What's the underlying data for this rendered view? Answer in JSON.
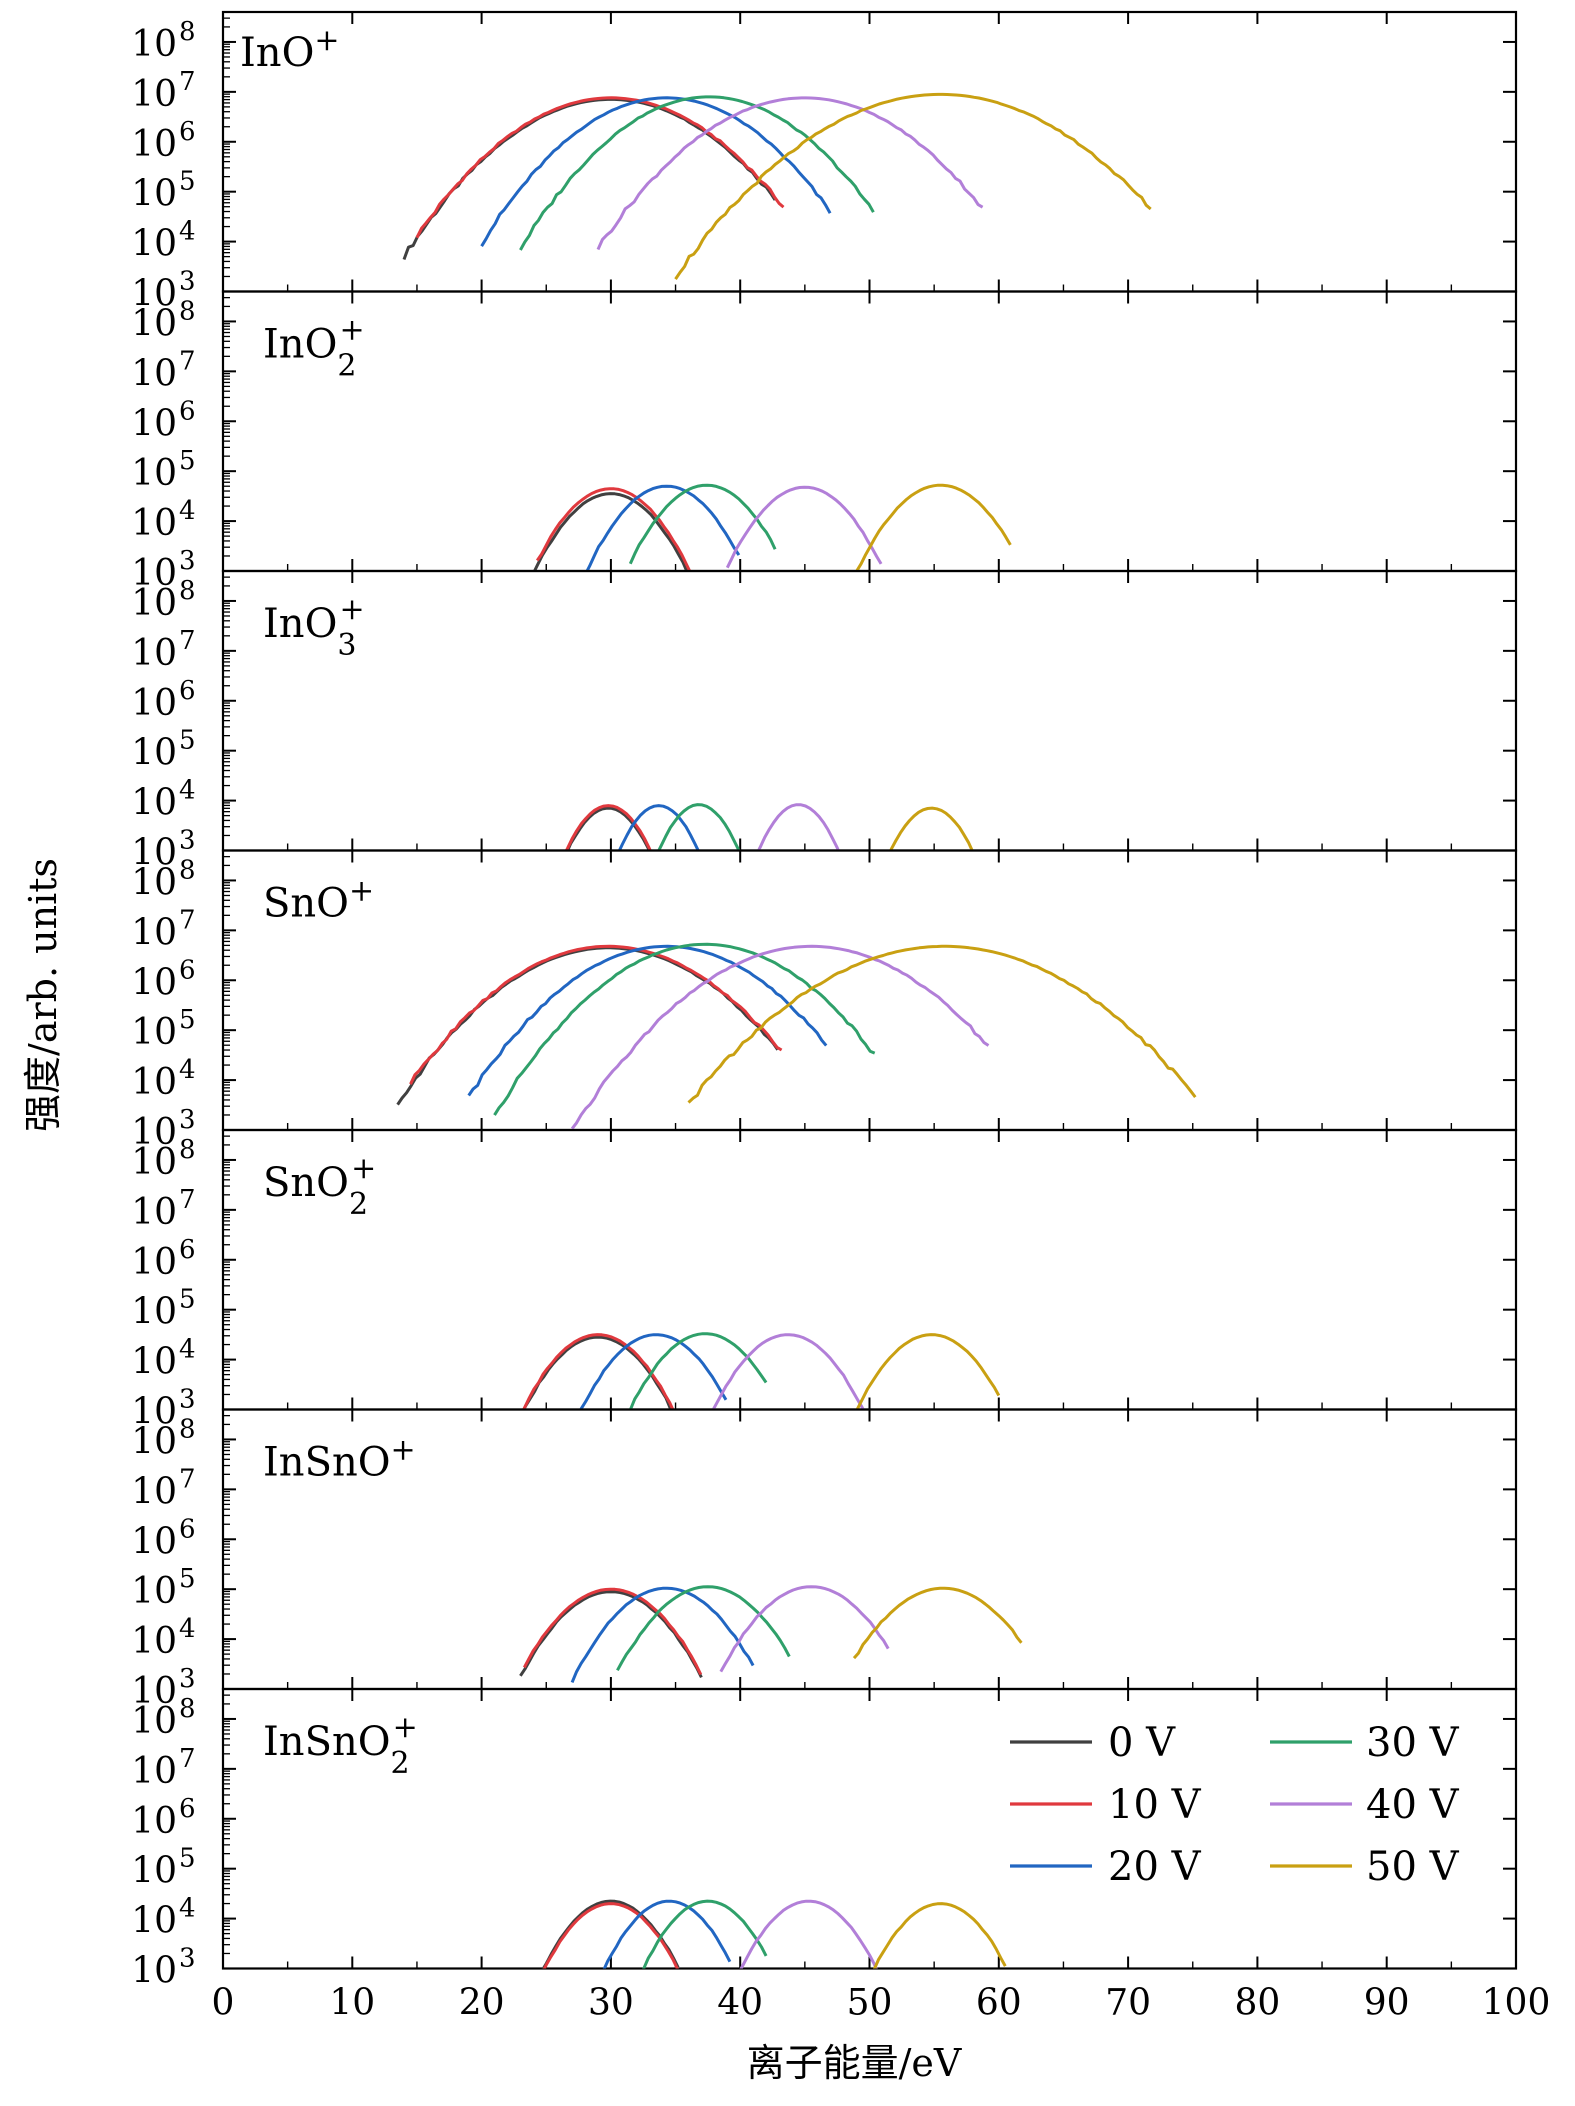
{
  "chart_data": {
    "type": "line",
    "xlabel": "离子能量/eV",
    "ylabel": "强度/arb. units",
    "x_axis": {
      "range": [
        0,
        100
      ],
      "ticks": [
        0,
        10,
        20,
        30,
        40,
        50,
        60,
        70,
        80,
        90,
        100
      ]
    },
    "y_axis": {
      "scale": "log",
      "range_exponent": [
        3,
        8.6
      ],
      "ticks": [
        {
          "base": "10",
          "exp": "3"
        },
        {
          "base": "10",
          "exp": "4"
        },
        {
          "base": "10",
          "exp": "5"
        },
        {
          "base": "10",
          "exp": "6"
        },
        {
          "base": "10",
          "exp": "7"
        },
        {
          "base": "10",
          "exp": "8"
        }
      ]
    },
    "series_styles": [
      {
        "name": "0 V",
        "color": "#404040"
      },
      {
        "name": "10 V",
        "color": "#e0393e"
      },
      {
        "name": "20 V",
        "color": "#2166c2"
      },
      {
        "name": "30 V",
        "color": "#2fa06a"
      },
      {
        "name": "40 V",
        "color": "#b27fd8"
      },
      {
        "name": "50 V",
        "color": "#c9a012"
      }
    ],
    "legend": {
      "placement": "bottom-panel-right",
      "columns": 2
    },
    "panels": [
      {
        "label": {
          "base": "InO",
          "sup": "+",
          "sub": ""
        },
        "series": [
          {
            "name": "0 V",
            "peak_energy": 30.0,
            "peak_log": 6.85,
            "width": 4.2,
            "range": [
              14,
              43
            ]
          },
          {
            "name": "10 V",
            "peak_energy": 30.0,
            "peak_log": 6.88,
            "width": 4.2,
            "range": [
              15,
              43.5
            ]
          },
          {
            "name": "20 V",
            "peak_energy": 34.3,
            "peak_log": 6.88,
            "width": 3.9,
            "range": [
              20,
              47
            ]
          },
          {
            "name": "30 V",
            "peak_energy": 37.6,
            "peak_log": 6.9,
            "width": 3.9,
            "range": [
              23,
              50.5
            ]
          },
          {
            "name": "40 V",
            "peak_energy": 45.0,
            "peak_log": 6.88,
            "width": 4.3,
            "range": [
              29,
              59
            ]
          },
          {
            "name": "50 V",
            "peak_energy": 55.5,
            "peak_log": 6.95,
            "width": 5.0,
            "range": [
              35,
              72
            ]
          }
        ]
      },
      {
        "label": {
          "base": "InO",
          "sup": "+",
          "sub": "2"
        },
        "series": [
          {
            "name": "0 V",
            "peak_energy": 30.0,
            "peak_log": 4.55,
            "width": 2.2,
            "range": [
              24,
              36
            ]
          },
          {
            "name": "10 V",
            "peak_energy": 30.0,
            "peak_log": 4.65,
            "width": 2.2,
            "range": [
              24.3,
              36.5
            ]
          },
          {
            "name": "20 V",
            "peak_energy": 34.3,
            "peak_log": 4.7,
            "width": 2.2,
            "range": [
              28,
              40
            ]
          },
          {
            "name": "30 V",
            "peak_energy": 37.4,
            "peak_log": 4.72,
            "width": 2.2,
            "range": [
              31.5,
              43
            ]
          },
          {
            "name": "40 V",
            "peak_energy": 45.0,
            "peak_log": 4.68,
            "width": 2.2,
            "range": [
              39,
              51
            ]
          },
          {
            "name": "50 V",
            "peak_energy": 55.5,
            "peak_log": 4.72,
            "width": 2.3,
            "range": [
              49,
              61
            ]
          }
        ]
      },
      {
        "label": {
          "base": "InO",
          "sup": "+",
          "sub": "3"
        },
        "series": [
          {
            "name": "0 V",
            "peak_energy": 29.8,
            "peak_log": 3.85,
            "width": 1.6,
            "range": [
              25.5,
              33.5
            ]
          },
          {
            "name": "10 V",
            "peak_energy": 29.8,
            "peak_log": 3.9,
            "width": 1.6,
            "range": [
              25.6,
              34
            ]
          },
          {
            "name": "20 V",
            "peak_energy": 33.7,
            "peak_log": 3.9,
            "width": 1.5,
            "range": [
              29.5,
              37.5
            ]
          },
          {
            "name": "30 V",
            "peak_energy": 36.8,
            "peak_log": 3.92,
            "width": 1.5,
            "range": [
              32.5,
              40.5
            ]
          },
          {
            "name": "40 V",
            "peak_energy": 44.5,
            "peak_log": 3.92,
            "width": 1.5,
            "range": [
              40.5,
              48.5
            ]
          },
          {
            "name": "50 V",
            "peak_energy": 54.8,
            "peak_log": 3.85,
            "width": 1.6,
            "range": [
              51,
              58.5
            ]
          }
        ]
      },
      {
        "label": {
          "base": "SnO",
          "sup": "+",
          "sub": ""
        },
        "series": [
          {
            "name": "0 V",
            "peak_energy": 29.8,
            "peak_log": 6.65,
            "width": 4.3,
            "range": [
              13.5,
              43
            ]
          },
          {
            "name": "10 V",
            "peak_energy": 29.8,
            "peak_log": 6.68,
            "width": 4.3,
            "range": [
              14.5,
              43.5
            ]
          },
          {
            "name": "20 V",
            "peak_energy": 34.3,
            "peak_log": 6.68,
            "width": 4.1,
            "range": [
              19,
              46.8
            ]
          },
          {
            "name": "30 V",
            "peak_energy": 37.3,
            "peak_log": 6.72,
            "width": 4.1,
            "range": [
              21,
              50.5
            ]
          },
          {
            "name": "40 V",
            "peak_energy": 45.5,
            "peak_log": 6.68,
            "width": 4.5,
            "range": [
              27,
              59.5
            ]
          },
          {
            "name": "50 V",
            "peak_energy": 55.8,
            "peak_log": 6.68,
            "width": 5.2,
            "range": [
              36,
              75.5
            ]
          }
        ]
      },
      {
        "label": {
          "base": "SnO",
          "sup": "+",
          "sub": "2"
        },
        "series": [
          {
            "name": "0 V",
            "peak_energy": 29.0,
            "peak_log": 4.45,
            "width": 2.2,
            "range": [
              22.7,
              35
            ]
          },
          {
            "name": "10 V",
            "peak_energy": 29.0,
            "peak_log": 4.5,
            "width": 2.2,
            "range": [
              23,
              35.5
            ]
          },
          {
            "name": "20 V",
            "peak_energy": 33.5,
            "peak_log": 4.5,
            "width": 2.2,
            "range": [
              27,
              39
            ]
          },
          {
            "name": "30 V",
            "peak_energy": 37.3,
            "peak_log": 4.52,
            "width": 2.2,
            "range": [
              30.8,
              42
            ]
          },
          {
            "name": "40 V",
            "peak_energy": 43.7,
            "peak_log": 4.5,
            "width": 2.2,
            "range": [
              37.5,
              50
            ]
          },
          {
            "name": "50 V",
            "peak_energy": 54.8,
            "peak_log": 4.5,
            "width": 2.2,
            "range": [
              48.8,
              60
            ]
          }
        ]
      },
      {
        "label": {
          "base": "InSnO",
          "sup": "+",
          "sub": ""
        },
        "series": [
          {
            "name": "0 V",
            "peak_energy": 30.0,
            "peak_log": 4.95,
            "width": 2.5,
            "range": [
              23,
              37
            ]
          },
          {
            "name": "10 V",
            "peak_energy": 30.0,
            "peak_log": 5.0,
            "width": 2.5,
            "range": [
              23.3,
              37
            ]
          },
          {
            "name": "20 V",
            "peak_energy": 34.3,
            "peak_log": 5.02,
            "width": 2.5,
            "range": [
              27,
              41
            ]
          },
          {
            "name": "30 V",
            "peak_energy": 37.5,
            "peak_log": 5.05,
            "width": 2.5,
            "range": [
              30.5,
              44
            ]
          },
          {
            "name": "40 V",
            "peak_energy": 45.5,
            "peak_log": 5.05,
            "width": 2.5,
            "range": [
              38.5,
              51.5
            ]
          },
          {
            "name": "50 V",
            "peak_energy": 55.7,
            "peak_log": 5.02,
            "width": 2.7,
            "range": [
              48.8,
              62
            ]
          }
        ]
      },
      {
        "label": {
          "base": "InSnO",
          "sup": "+",
          "sub": "2"
        },
        "series": [
          {
            "name": "0 V",
            "peak_energy": 30.0,
            "peak_log": 4.35,
            "width": 2.1,
            "range": [
              24,
              35.5
            ]
          },
          {
            "name": "10 V",
            "peak_energy": 30.0,
            "peak_log": 4.3,
            "width": 2.1,
            "range": [
              24.3,
              35.8
            ]
          },
          {
            "name": "20 V",
            "peak_energy": 34.5,
            "peak_log": 4.35,
            "width": 2.0,
            "range": [
              28,
              39.5
            ]
          },
          {
            "name": "30 V",
            "peak_energy": 37.5,
            "peak_log": 4.35,
            "width": 2.0,
            "range": [
              31.5,
              42
            ]
          },
          {
            "name": "40 V",
            "peak_energy": 45.3,
            "peak_log": 4.35,
            "width": 2.1,
            "range": [
              39.5,
              51
            ]
          },
          {
            "name": "50 V",
            "peak_energy": 55.5,
            "peak_log": 4.3,
            "width": 2.1,
            "range": [
              50,
              60.5
            ]
          }
        ]
      }
    ]
  }
}
